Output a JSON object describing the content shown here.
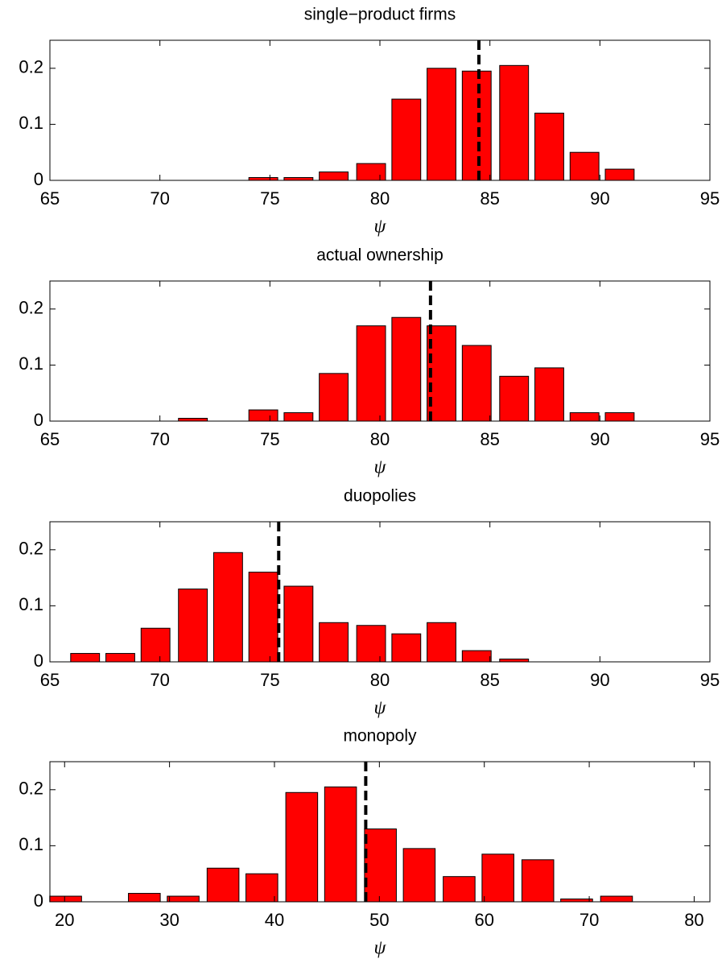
{
  "chart_data": [
    {
      "type": "bar",
      "title": "single−product firms",
      "xlabel": "ψ",
      "color": "#ff0000",
      "x": [
        66.6,
        68.2,
        69.8,
        71.5,
        73.1,
        74.7,
        76.3,
        77.9,
        79.6,
        81.2,
        82.8,
        84.4,
        86.1,
        87.7,
        89.3,
        90.9,
        92.6
      ],
      "values": [
        0,
        0,
        0,
        0,
        0,
        0.005,
        0.005,
        0.015,
        0.03,
        0.145,
        0.2,
        0.195,
        0.205,
        0.12,
        0.05,
        0.02,
        0
      ],
      "reference_line": 84.5,
      "xlim": [
        65,
        95
      ],
      "xticks": [
        65,
        70,
        75,
        80,
        85,
        90,
        95
      ],
      "ylim": [
        0,
        0.25
      ],
      "yticks": [
        0,
        0.1,
        0.2
      ]
    },
    {
      "type": "bar",
      "title": "actual ownership",
      "xlabel": "ψ",
      "color": "#ff0000",
      "x": [
        66.6,
        68.2,
        69.8,
        71.5,
        73.1,
        74.7,
        76.3,
        77.9,
        79.6,
        81.2,
        82.8,
        84.4,
        86.1,
        87.7,
        89.3,
        90.9,
        92.6
      ],
      "values": [
        0,
        0,
        0,
        0.005,
        0,
        0.02,
        0.015,
        0.085,
        0.17,
        0.185,
        0.17,
        0.135,
        0.08,
        0.095,
        0.015,
        0.015,
        0
      ],
      "reference_line": 82.3,
      "xlim": [
        65,
        95
      ],
      "xticks": [
        65,
        70,
        75,
        80,
        85,
        90,
        95
      ],
      "ylim": [
        0,
        0.25
      ],
      "yticks": [
        0,
        0.1,
        0.2
      ]
    },
    {
      "type": "bar",
      "title": "duopolies",
      "xlabel": "ψ",
      "color": "#ff0000",
      "x": [
        66.6,
        68.2,
        69.8,
        71.5,
        73.1,
        74.7,
        76.3,
        77.9,
        79.6,
        81.2,
        82.8,
        84.4,
        86.1,
        87.7,
        89.3,
        90.9,
        92.6
      ],
      "values": [
        0.015,
        0.015,
        0.06,
        0.13,
        0.195,
        0.16,
        0.135,
        0.07,
        0.065,
        0.05,
        0.07,
        0.02,
        0.005,
        0,
        0,
        0,
        0
      ],
      "reference_line": 75.4,
      "xlim": [
        65,
        95
      ],
      "xticks": [
        65,
        70,
        75,
        80,
        85,
        90,
        95
      ],
      "ylim": [
        0,
        0.25
      ],
      "yticks": [
        0,
        0.1,
        0.2
      ]
    },
    {
      "type": "bar",
      "title": "monopoly",
      "xlabel": "ψ",
      "color": "#ff0000",
      "x": [
        20.1,
        23.8,
        27.6,
        31.3,
        35.1,
        38.8,
        42.6,
        46.3,
        50.1,
        53.8,
        57.6,
        61.3,
        65.1,
        68.8,
        72.6,
        76.3,
        80.1
      ],
      "values": [
        0.01,
        0,
        0.015,
        0.01,
        0.06,
        0.05,
        0.195,
        0.205,
        0.13,
        0.095,
        0.045,
        0.085,
        0.075,
        0.005,
        0.01,
        0,
        0
      ],
      "reference_line": 48.7,
      "xlim": [
        18.6,
        81.5
      ],
      "xticks": [
        20,
        30,
        40,
        50,
        60,
        70,
        80
      ],
      "ylim": [
        0,
        0.25
      ],
      "yticks": [
        0,
        0.1,
        0.2
      ]
    }
  ]
}
